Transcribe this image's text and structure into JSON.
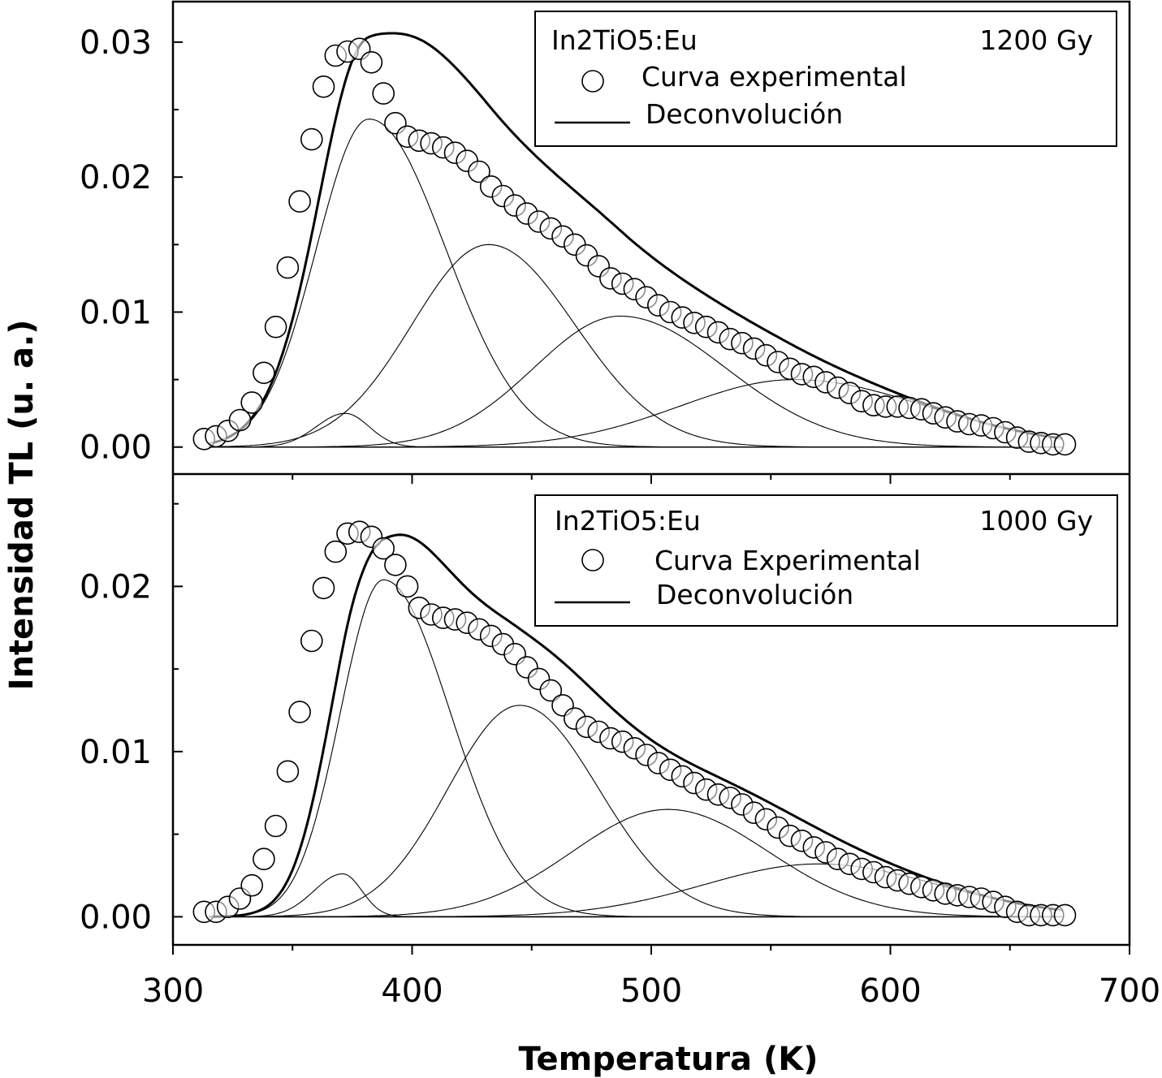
{
  "chart_data": {
    "type": "scatter",
    "xlabel": "Temperatura (K)",
    "ylabel": "Intensidad TL (u. a.)",
    "xlim": [
      300,
      700
    ],
    "xticks": [
      "300",
      "400",
      "500",
      "600",
      "700"
    ],
    "panels": [
      {
        "id": "top",
        "sample": "In2TiO5:Eu",
        "dose": "1200 Gy",
        "ylim": [
          -0.002,
          0.033
        ],
        "yticks": [
          0,
          0.01,
          0.02,
          0.03
        ],
        "ytick_labels": [
          "0.00",
          "0.01",
          "0.02",
          "0.03"
        ],
        "legend": {
          "position": "top-right",
          "experimental": "Curva experimental",
          "fit": "Deconvolución"
        },
        "components": [
          {
            "name": "peak-1",
            "center": 372,
            "height": 0.0025,
            "width_low": 12,
            "width_high": 10
          },
          {
            "name": "peak-2",
            "center": 382,
            "height": 0.0243,
            "width_low": 22,
            "width_high": 32
          },
          {
            "name": "peak-3",
            "center": 432,
            "height": 0.015,
            "width_low": 32,
            "width_high": 36
          },
          {
            "name": "peak-4",
            "center": 487,
            "height": 0.0097,
            "width_low": 36,
            "width_high": 44
          },
          {
            "name": "peak-5",
            "center": 560,
            "height": 0.005,
            "width_low": 48,
            "width_high": 55
          }
        ],
        "experimental": {
          "x": [
            313,
            318,
            323,
            328,
            333,
            338,
            343,
            348,
            353,
            358,
            363,
            368,
            373,
            378,
            383,
            388,
            393,
            398,
            403,
            408,
            413,
            418,
            423,
            428,
            433,
            438,
            443,
            448,
            453,
            458,
            463,
            468,
            473,
            478,
            483,
            488,
            493,
            498,
            503,
            508,
            513,
            518,
            523,
            528,
            533,
            538,
            543,
            548,
            553,
            558,
            563,
            568,
            573,
            578,
            583,
            588,
            593,
            598,
            603,
            608,
            613,
            618,
            623,
            628,
            633,
            638,
            643,
            648,
            653,
            658,
            663,
            668,
            673
          ],
          "y": [
            0.0006,
            0.0008,
            0.0012,
            0.002,
            0.0033,
            0.0055,
            0.0089,
            0.0133,
            0.0182,
            0.0228,
            0.0267,
            0.029,
            0.0293,
            0.0295,
            0.0285,
            0.0262,
            0.024,
            0.023,
            0.0227,
            0.0225,
            0.0222,
            0.0218,
            0.0212,
            0.0204,
            0.0193,
            0.0186,
            0.0179,
            0.0173,
            0.0167,
            0.0162,
            0.0156,
            0.015,
            0.0142,
            0.0134,
            0.0125,
            0.0121,
            0.0117,
            0.0111,
            0.0105,
            0.01,
            0.0096,
            0.0092,
            0.0089,
            0.0085,
            0.008,
            0.0077,
            0.0073,
            0.0068,
            0.0063,
            0.0058,
            0.0054,
            0.0052,
            0.0048,
            0.0044,
            0.004,
            0.0034,
            0.0031,
            0.003,
            0.003,
            0.0029,
            0.0028,
            0.0025,
            0.0022,
            0.0019,
            0.0017,
            0.0016,
            0.0014,
            0.0011,
            0.0007,
            0.0004,
            0.0003,
            0.0002,
            0.0002
          ]
        }
      },
      {
        "id": "bottom",
        "sample": "In2TiO5:Eu",
        "dose": "1000 Gy",
        "ylim": [
          -0.0017,
          0.0268
        ],
        "yticks": [
          0,
          0.01,
          0.02
        ],
        "ytick_labels": [
          "0.00",
          "0.01",
          "0.02"
        ],
        "legend": {
          "position": "top-right",
          "experimental": "Curva Experimental",
          "fit": "Deconvolución"
        },
        "components": [
          {
            "name": "peak-1",
            "center": 371,
            "height": 0.0026,
            "width_low": 12,
            "width_high": 8
          },
          {
            "name": "peak-2",
            "center": 388,
            "height": 0.0204,
            "width_low": 18,
            "width_high": 28
          },
          {
            "name": "peak-3",
            "center": 445,
            "height": 0.0128,
            "width_low": 30,
            "width_high": 33
          },
          {
            "name": "peak-4",
            "center": 507,
            "height": 0.0065,
            "width_low": 40,
            "width_high": 42
          },
          {
            "name": "peak-5",
            "center": 570,
            "height": 0.0032,
            "width_low": 48,
            "width_high": 50
          }
        ],
        "experimental": {
          "x": [
            313,
            318,
            323,
            328,
            333,
            338,
            343,
            348,
            353,
            358,
            363,
            368,
            373,
            378,
            383,
            388,
            393,
            398,
            403,
            408,
            413,
            418,
            423,
            428,
            433,
            438,
            443,
            448,
            453,
            458,
            463,
            468,
            473,
            478,
            483,
            488,
            493,
            498,
            503,
            508,
            513,
            518,
            523,
            528,
            533,
            538,
            543,
            548,
            553,
            558,
            563,
            568,
            573,
            578,
            583,
            588,
            593,
            598,
            603,
            608,
            613,
            618,
            623,
            628,
            633,
            638,
            643,
            648,
            653,
            658,
            663,
            668,
            673
          ],
          "y": [
            0.0003,
            0.0003,
            0.0006,
            0.0011,
            0.0019,
            0.0035,
            0.0055,
            0.0088,
            0.0124,
            0.0167,
            0.0199,
            0.0221,
            0.0232,
            0.0233,
            0.023,
            0.0223,
            0.0213,
            0.02,
            0.0187,
            0.0183,
            0.0181,
            0.018,
            0.0178,
            0.0174,
            0.017,
            0.0165,
            0.0159,
            0.0151,
            0.0144,
            0.0137,
            0.0128,
            0.012,
            0.0115,
            0.0112,
            0.0108,
            0.0106,
            0.0102,
            0.0098,
            0.0093,
            0.0089,
            0.0085,
            0.0081,
            0.0077,
            0.0074,
            0.0072,
            0.0068,
            0.0063,
            0.0059,
            0.0054,
            0.0049,
            0.0046,
            0.0042,
            0.0039,
            0.0035,
            0.0032,
            0.0029,
            0.0027,
            0.0024,
            0.0022,
            0.002,
            0.0018,
            0.0016,
            0.0014,
            0.0013,
            0.0012,
            0.0011,
            0.0009,
            0.0006,
            0.0003,
            0.0001,
            0.0001,
            0.0001,
            0.0001
          ]
        }
      }
    ]
  }
}
